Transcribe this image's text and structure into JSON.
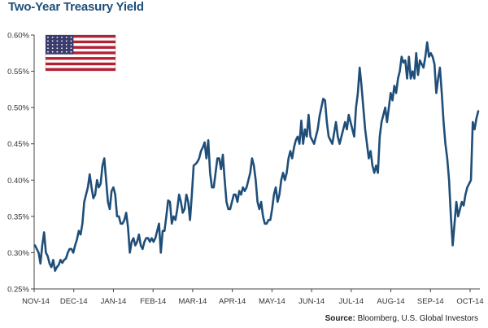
{
  "chart_data": {
    "type": "line",
    "title": "Two-Year Treasury Yield",
    "xlabel": "",
    "ylabel": "",
    "ylim": [
      0.25,
      0.6
    ],
    "y_ticks": [
      "0.25%",
      "0.30%",
      "0.35%",
      "0.40%",
      "0.45%",
      "0.50%",
      "0.55%",
      "0.60%"
    ],
    "x_ticks": [
      "NOV-14",
      "DEC-14",
      "JAN-14",
      "FEB-14",
      "MAR-14",
      "APR-14",
      "MAY-14",
      "JUN-14",
      "JUL-14",
      "AUG-14",
      "SEP-14",
      "OCT-14"
    ],
    "line_color": "#1f4e79",
    "grid": false,
    "series": [
      {
        "values": [
          0.31,
          0.305,
          0.3,
          0.285,
          0.31,
          0.328,
          0.3,
          0.295,
          0.285,
          0.28,
          0.29,
          0.275,
          0.28,
          0.283,
          0.29,
          0.286,
          0.29,
          0.292,
          0.3,
          0.305,
          0.305,
          0.3,
          0.31,
          0.318,
          0.33,
          0.325,
          0.34,
          0.37,
          0.38,
          0.39,
          0.408,
          0.39,
          0.375,
          0.38,
          0.4,
          0.39,
          0.395,
          0.42,
          0.43,
          0.4,
          0.37,
          0.36,
          0.385,
          0.39,
          0.38,
          0.35,
          0.35,
          0.34,
          0.34,
          0.345,
          0.355,
          0.335,
          0.3,
          0.315,
          0.32,
          0.31,
          0.315,
          0.325,
          0.31,
          0.305,
          0.315,
          0.32,
          0.32,
          0.315,
          0.32,
          0.315,
          0.32,
          0.33,
          0.34,
          0.3,
          0.33,
          0.33,
          0.35,
          0.372,
          0.37,
          0.34,
          0.35,
          0.345,
          0.36,
          0.38,
          0.37,
          0.355,
          0.36,
          0.38,
          0.37,
          0.345,
          0.38,
          0.42,
          0.422,
          0.425,
          0.43,
          0.44,
          0.445,
          0.452,
          0.43,
          0.455,
          0.41,
          0.39,
          0.39,
          0.41,
          0.43,
          0.43,
          0.415,
          0.435,
          0.4,
          0.37,
          0.36,
          0.36,
          0.37,
          0.38,
          0.38,
          0.37,
          0.385,
          0.38,
          0.39,
          0.385,
          0.39,
          0.4,
          0.41,
          0.43,
          0.42,
          0.4,
          0.37,
          0.36,
          0.37,
          0.35,
          0.34,
          0.34,
          0.345,
          0.345,
          0.36,
          0.38,
          0.39,
          0.37,
          0.38,
          0.4,
          0.41,
          0.4,
          0.41,
          0.43,
          0.44,
          0.43,
          0.445,
          0.455,
          0.46,
          0.45,
          0.482,
          0.45,
          0.47,
          0.46,
          0.49,
          0.46,
          0.455,
          0.45,
          0.46,
          0.47,
          0.488,
          0.5,
          0.512,
          0.51,
          0.48,
          0.46,
          0.455,
          0.45,
          0.465,
          0.48,
          0.46,
          0.45,
          0.46,
          0.47,
          0.48,
          0.47,
          0.49,
          0.48,
          0.47,
          0.46,
          0.5,
          0.52,
          0.555,
          0.53,
          0.5,
          0.47,
          0.45,
          0.43,
          0.44,
          0.42,
          0.41,
          0.42,
          0.41,
          0.46,
          0.48,
          0.49,
          0.5,
          0.48,
          0.5,
          0.52,
          0.51,
          0.53,
          0.52,
          0.54,
          0.55,
          0.57,
          0.562,
          0.565,
          0.54,
          0.57,
          0.54,
          0.55,
          0.54,
          0.575,
          0.545,
          0.565,
          0.56,
          0.555,
          0.57,
          0.59,
          0.57,
          0.575,
          0.57,
          0.56,
          0.52,
          0.54,
          0.555,
          0.52,
          0.48,
          0.45,
          0.43,
          0.4,
          0.35,
          0.31,
          0.34,
          0.37,
          0.35,
          0.36,
          0.37,
          0.365,
          0.38,
          0.39,
          0.395,
          0.4,
          0.48,
          0.47,
          0.485,
          0.495
        ]
      }
    ]
  },
  "header": {
    "title": "Two-Year Treasury Yield"
  },
  "source": {
    "label": "Source:",
    "text": " Bloomberg, U.S. Global Investors"
  },
  "flag": {
    "icon": "us-flag-icon",
    "red": "#b22234",
    "white": "#ffffff",
    "blue": "#3c3b6e"
  }
}
